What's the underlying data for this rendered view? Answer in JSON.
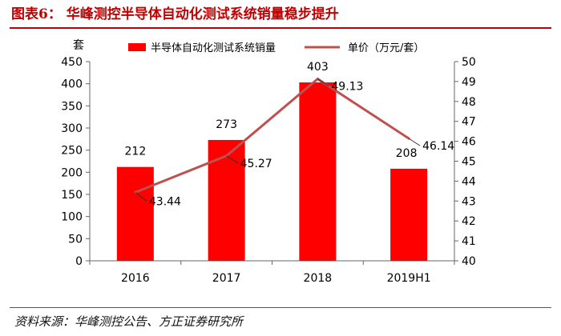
{
  "figure": {
    "title": "图表6：  华峰测控半导体自动化测试系统销量稳步提升",
    "source": "资料来源：华峰测控公告、方正证券研究所"
  },
  "colors": {
    "bar": "#ff0000",
    "line": "#c0504d",
    "title": "#c00000",
    "axis": "#666666"
  },
  "chart_data": {
    "type": "bar",
    "categories": [
      "2016",
      "2017",
      "2018",
      "2019H1"
    ],
    "series": [
      {
        "name": "半导体自动化测试系统销量",
        "type": "bar",
        "axis": "left",
        "values": [
          212,
          273,
          403,
          208
        ],
        "labels": [
          "212",
          "273",
          "403",
          "208"
        ]
      },
      {
        "name": "单价（万元/套）",
        "type": "line",
        "axis": "right",
        "values": [
          43.44,
          45.27,
          49.13,
          46.14
        ],
        "labels": [
          "43.44",
          "45.27",
          "49.13",
          "46.14"
        ]
      }
    ],
    "ylabel": "套",
    "ylim": [
      0,
      450
    ],
    "yticks": [
      "0",
      "50",
      "100",
      "150",
      "200",
      "250",
      "300",
      "350",
      "400",
      "450"
    ],
    "y2lim": [
      40,
      50
    ],
    "y2ticks": [
      "40",
      "41",
      "42",
      "43",
      "44",
      "45",
      "46",
      "47",
      "48",
      "49",
      "50"
    ],
    "legend": "top",
    "grid": false
  }
}
